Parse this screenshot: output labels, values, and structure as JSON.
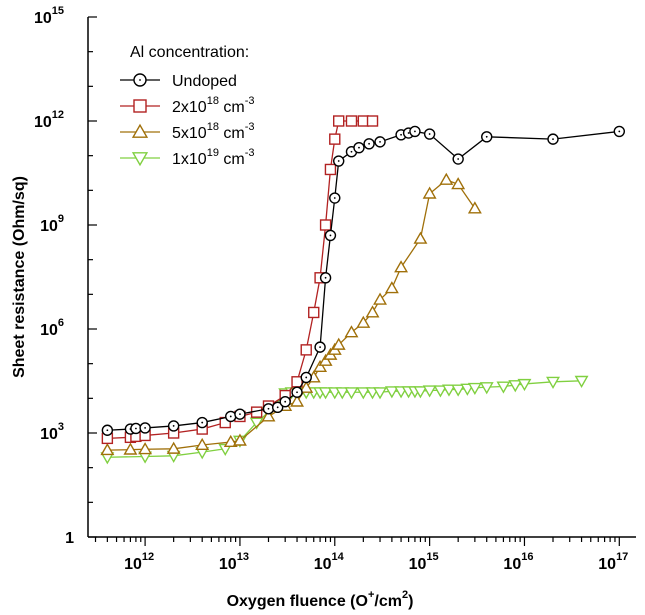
{
  "chart_data": {
    "type": "scatter",
    "title": "",
    "xlabel": "Oxygen fluence (O+/cm2)",
    "ylabel": "Sheet resistance (Ohm/sq)",
    "xscale": "log",
    "yscale": "log",
    "xlim": [
      250000000000.0,
      1.5e+17
    ],
    "ylim": [
      1,
      1000000000000000.0
    ],
    "x_ticks": [
      "10^12",
      "10^13",
      "10^14",
      "10^15",
      "10^16",
      "10^17"
    ],
    "y_ticks": [
      "1",
      "10^3",
      "10^6",
      "10^9",
      "10^12",
      "10^15"
    ],
    "grid": false,
    "legend_title": "Al concentration:",
    "legend_position": "top-left",
    "series": [
      {
        "name": "Undoped",
        "marker": "circle-dot",
        "color": "#000000",
        "x": [
          400000000000.0,
          700000000000.0,
          800000000000.0,
          1000000000000.0,
          2000000000000.0,
          4000000000000.0,
          8000000000000.0,
          10000000000000.0,
          20000000000000.0,
          25000000000000.0,
          30000000000000.0,
          40000000000000.0,
          50000000000000.0,
          70000000000000.0,
          80000000000000.0,
          90000000000000.0,
          100000000000000.0,
          110000000000000.0,
          150000000000000.0,
          180000000000000.0,
          230000000000000.0,
          300000000000000.0,
          500000000000000.0,
          600000000000000.0,
          700000000000000.0,
          1000000000000000.0,
          2000000000000000.0,
          4000000000000000.0,
          2e+16,
          1e+17
        ],
        "y": [
          1200,
          1300,
          1350,
          1400,
          1600,
          2000,
          3000,
          3500,
          5000,
          5500,
          8000,
          15000.0,
          40000.0,
          300000.0,
          30000000.0,
          500000000.0,
          6000000000.0,
          70000000000.0,
          130000000000.0,
          170000000000.0,
          220000000000.0,
          250000000000.0,
          400000000000.0,
          450000000000.0,
          500000000000.0,
          420000000000.0,
          80000000000.0,
          350000000000.0,
          300000000000.0,
          500000000000.0
        ]
      },
      {
        "name": "2x10^18 cm^-3",
        "marker": "square",
        "color": "#b22222",
        "x": [
          400000000000.0,
          700000000000.0,
          800000000000.0,
          1000000000000.0,
          2000000000000.0,
          4000000000000.0,
          7000000000000.0,
          10000000000000.0,
          15000000000000.0,
          20000000000000.0,
          30000000000000.0,
          40000000000000.0,
          50000000000000.0,
          60000000000000.0,
          70000000000000.0,
          80000000000000.0,
          90000000000000.0,
          100000000000000.0,
          110000000000000.0,
          150000000000000.0,
          200000000000000.0,
          250000000000000.0
        ],
        "y": [
          700,
          750,
          800,
          850,
          1000,
          1300,
          2000,
          3000,
          4000,
          6000,
          12000.0,
          30000.0,
          250000.0,
          3000000.0,
          30000000.0,
          1000000000.0,
          40000000000.0,
          300000000000.0,
          1000000000000.0,
          1000000000000.0,
          1000000000000.0,
          1000000000000.0
        ]
      },
      {
        "name": "5x10^18 cm^-3",
        "marker": "triangle-up",
        "color": "#a0700a",
        "x": [
          400000000000.0,
          700000000000.0,
          1000000000000.0,
          2000000000000.0,
          4000000000000.0,
          8000000000000.0,
          10000000000000.0,
          20000000000000.0,
          30000000000000.0,
          40000000000000.0,
          50000000000000.0,
          60000000000000.0,
          70000000000000.0,
          80000000000000.0,
          90000000000000.0,
          100000000000000.0,
          110000000000000.0,
          150000000000000.0,
          200000000000000.0,
          250000000000000.0,
          300000000000000.0,
          400000000000000.0,
          500000000000000.0,
          800000000000000.0,
          1000000000000000.0,
          1500000000000000.0,
          2000000000000000.0,
          3000000000000000.0
        ],
        "y": [
          320,
          330,
          340,
          350,
          450,
          550,
          600,
          3000,
          6000,
          8000.0,
          20000.0,
          40000.0,
          80000.0,
          120000.0,
          180000.0,
          250000.0,
          350000.0,
          800000.0,
          1500000.0,
          3000000.0,
          7000000.0,
          15000000.0,
          60000000.0,
          400000000.0,
          8000000000.0,
          20000000000.0,
          15000000000.0,
          3000000000.0
        ]
      },
      {
        "name": "1x10^19 cm^-3",
        "marker": "triangle-down",
        "color": "#80d040",
        "x": [
          400000000000.0,
          1000000000000.0,
          2000000000000.0,
          4000000000000.0,
          7000000000000.0,
          10000000000000.0,
          15000000000000.0,
          20000000000000.0,
          30000000000000.0,
          35000000000000.0,
          40000000000000.0,
          50000000000000.0,
          60000000000000.0,
          70000000000000.0,
          80000000000000.0,
          100000000000000.0,
          120000000000000.0,
          150000000000000.0,
          200000000000000.0,
          250000000000000.0,
          300000000000000.0,
          400000000000000.0,
          500000000000000.0,
          600000000000000.0,
          700000000000000.0,
          800000000000000.0,
          1000000000000000.0,
          1300000000000000.0,
          1600000000000000.0,
          2000000000000000.0,
          2500000000000000.0,
          3000000000000000.0,
          4000000000000000.0,
          6000000000000000.0,
          8000000000000000.0,
          1e+16,
          2e+16,
          4e+16
        ],
        "y": [
          200,
          210,
          220,
          280,
          350,
          600,
          2000,
          4000.0,
          14000.0,
          15000.0,
          15000.0,
          15000.0,
          15000.0,
          15000.0,
          15000.0,
          15000.0,
          15000.0,
          15000.0,
          15000.0,
          15000.0,
          15000.0,
          16000.0,
          16000.0,
          16000.0,
          16000.0,
          16000.0,
          17000.0,
          17000.0,
          18000.0,
          18000.0,
          19000.0,
          20000.0,
          21000.0,
          22000.0,
          24000.0,
          26000.0,
          30000.0,
          32000.0
        ]
      }
    ]
  },
  "labels": {
    "x_axis_title": {
      "main": "Oxygen fluence (O",
      "sup": "+",
      "mid": "/cm",
      "sup2": "2",
      "end": ")"
    },
    "y_axis_title": "Sheet resistance (Ohm/sq)",
    "x_tick_labels": [
      {
        "base": "10",
        "exp": "12"
      },
      {
        "base": "10",
        "exp": "13"
      },
      {
        "base": "10",
        "exp": "14"
      },
      {
        "base": "10",
        "exp": "15"
      },
      {
        "base": "10",
        "exp": "16"
      },
      {
        "base": "10",
        "exp": "17"
      }
    ],
    "y_tick_labels": [
      {
        "base": "1",
        "exp": ""
      },
      {
        "base": "10",
        "exp": "3"
      },
      {
        "base": "10",
        "exp": "6"
      },
      {
        "base": "10",
        "exp": "9"
      },
      {
        "base": "10",
        "exp": "12"
      },
      {
        "base": "10",
        "exp": "15"
      }
    ],
    "legend_entries": [
      {
        "main": "Undoped",
        "sup": "",
        "tail": "",
        "sup2": ""
      },
      {
        "main": "2x10",
        "sup": "18",
        "tail": " cm",
        "sup2": "-3"
      },
      {
        "main": "5x10",
        "sup": "18",
        "tail": " cm",
        "sup2": "-3"
      },
      {
        "main": "1x10",
        "sup": "19",
        "tail": " cm",
        "sup2": "-3"
      }
    ]
  }
}
